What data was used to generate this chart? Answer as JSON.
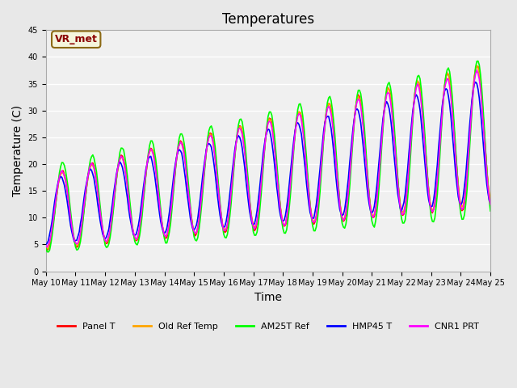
{
  "title": "Temperatures",
  "xlabel": "Time",
  "ylabel": "Temperature (C)",
  "ylim": [
    0,
    45
  ],
  "yticks": [
    0,
    5,
    10,
    15,
    20,
    25,
    30,
    35,
    40,
    45
  ],
  "annotation_text": "VR_met",
  "annotation_color": "#8B0000",
  "annotation_bg": "#F5F5DC",
  "annotation_border": "#8B6914",
  "series_colors": [
    "red",
    "orange",
    "lime",
    "blue",
    "magenta"
  ],
  "series_names": [
    "Panel T",
    "Old Ref Temp",
    "AM25T Ref",
    "HMP45 T",
    "CNR1 PRT"
  ],
  "background_color": "#E8E8E8",
  "plot_bg_color": "#F0F0F0",
  "grid_color": "white",
  "title_fontsize": 12,
  "axis_label_fontsize": 10,
  "tick_fontsize": 7
}
